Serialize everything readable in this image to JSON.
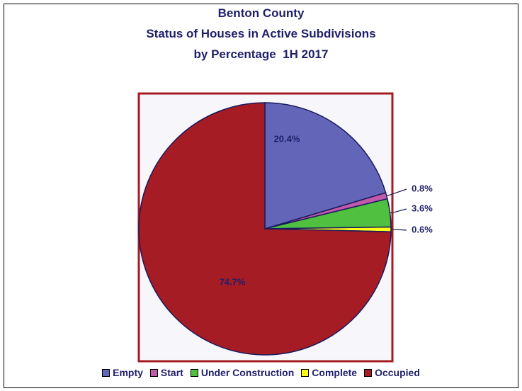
{
  "chart_data": {
    "type": "pie",
    "title": "Benton County",
    "subtitle_lines": [
      "Status of Houses in Active Subdivisions",
      "by Percentage  1H 2017"
    ],
    "categories": [
      "Empty",
      "Start",
      "Under Construction",
      "Complete",
      "Occupied"
    ],
    "values": [
      20.4,
      0.8,
      3.6,
      0.6,
      74.7
    ],
    "labels": [
      "20.4%",
      "0.8%",
      "3.6%",
      "0.6%",
      "74.7%"
    ],
    "colors": [
      "#6366b8",
      "#c25aaa",
      "#4fc03f",
      "#ffff1a",
      "#a51c24"
    ],
    "start_angle_deg": 0,
    "direction": "clockwise",
    "plot_background": "#f7f7fb",
    "plot_border_color": "#a51c24",
    "legend_position": "bottom"
  }
}
